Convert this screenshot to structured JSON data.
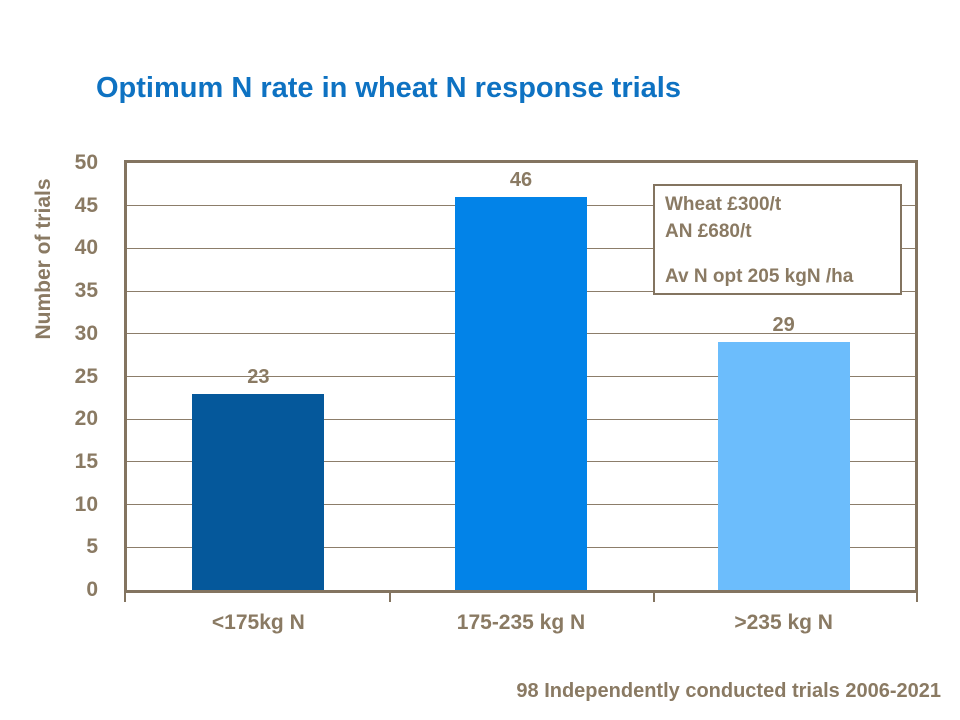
{
  "slide": {
    "title": "Optimum N rate in wheat N response trials",
    "caption": "98 Independently conducted trials 2006-2021"
  },
  "annotation_box": {
    "lines": [
      "Wheat £300/t",
      "AN £680/t",
      "Av N opt 205 kgN /ha"
    ]
  },
  "chart_data": {
    "type": "bar",
    "title": "Optimum N rate in wheat N response trials",
    "categories": [
      "<175kg N",
      "175-235 kg N",
      ">235 kg N"
    ],
    "values": [
      23,
      46,
      29
    ],
    "bar_colors": [
      "#05589b",
      "#0283e8",
      "#6cbdfc"
    ],
    "data_labels": [
      "23",
      "46",
      "29"
    ],
    "xlabel": "",
    "ylabel": "Number of trials",
    "ylim": [
      0,
      50
    ],
    "ytick_step": 5,
    "yticks": [
      0,
      5,
      10,
      15,
      20,
      25,
      30,
      35,
      40,
      45,
      50
    ],
    "grid": true,
    "legend": false,
    "annotation": "Wheat £300/t | AN £680/t | Av N opt 205 kgN /ha",
    "caption": "98 Independently conducted trials 2006-2021"
  },
  "colors": {
    "title_blue": "#0e72c2",
    "axis_brown": "#837460",
    "text_brown": "#8a7a63",
    "grid_brown": "#8c7d6a",
    "background": "#ffffff"
  }
}
